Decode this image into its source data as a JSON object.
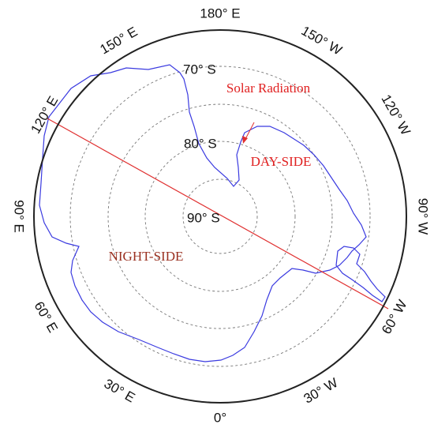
{
  "map": {
    "longitude_labels": [
      "180° E",
      "150° E",
      "120° E",
      "90° E",
      "60° E",
      "30° E",
      "0°",
      "30° W",
      "60° W",
      "90° W",
      "120° W",
      "150° W"
    ],
    "latitude_labels": [
      "90° S",
      "80° S",
      "70° S"
    ],
    "annotations": {
      "solar": "Solar Radiation",
      "day": "DAY-SIDE",
      "night": "NIGHT-SIDE"
    }
  }
}
